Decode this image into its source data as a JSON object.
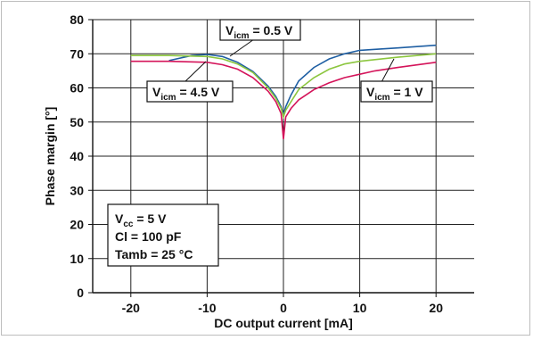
{
  "chart_data": {
    "type": "line",
    "title": "",
    "xlabel": "DC output current [mA]",
    "ylabel": "Phase margin [°]",
    "xlim": [
      -25,
      25
    ],
    "ylim": [
      0,
      80
    ],
    "x_ticks": [
      -20,
      -10,
      0,
      10,
      20
    ],
    "x_tick_labels": [
      "-20",
      "-10",
      "0",
      "10",
      "20"
    ],
    "y_ticks": [
      0,
      10,
      20,
      30,
      40,
      50,
      60,
      70,
      80
    ],
    "y_tick_labels": [
      "0",
      "10",
      "20",
      "30",
      "40",
      "50",
      "60",
      "70",
      "80"
    ],
    "grid": true,
    "series": [
      {
        "name": "Vicm = 0.5 V",
        "color": "#1f5fa3",
        "x": [
          -15,
          -12,
          -10,
          -8,
          -6,
          -4,
          -2,
          -1,
          -0.3,
          0,
          0.3,
          1,
          2,
          4,
          6,
          8,
          10,
          12,
          15,
          20
        ],
        "y": [
          68.0,
          69.5,
          69.8,
          69.2,
          67.5,
          64.8,
          60.5,
          57.5,
          54.5,
          52.0,
          54.5,
          58.0,
          62.0,
          66.0,
          68.5,
          70.0,
          71.0,
          71.3,
          71.7,
          72.5
        ]
      },
      {
        "name": "Vicm = 1 V",
        "color": "#8cc63f",
        "x": [
          -20,
          -15,
          -10,
          -8,
          -6,
          -4,
          -2,
          -1,
          -0.3,
          0,
          0.3,
          1,
          2,
          4,
          6,
          8,
          10,
          12,
          15,
          20
        ],
        "y": [
          69.5,
          69.5,
          69.2,
          68.5,
          67.0,
          64.5,
          60.0,
          57.0,
          54.0,
          51.5,
          53.5,
          56.0,
          59.5,
          63.0,
          65.5,
          67.0,
          67.8,
          68.3,
          69.0,
          70.0
        ]
      },
      {
        "name": "Vicm = 4.5 V",
        "color": "#d4145a",
        "x": [
          -20,
          -15,
          -10,
          -8,
          -6,
          -4,
          -2,
          -1,
          -0.3,
          0,
          0.3,
          1,
          2,
          4,
          6,
          8,
          10,
          12,
          15,
          20
        ],
        "y": [
          67.8,
          67.8,
          67.5,
          66.8,
          65.5,
          63.0,
          59.0,
          56.0,
          52.5,
          45.0,
          51.5,
          54.0,
          56.5,
          59.5,
          61.5,
          63.0,
          64.0,
          65.0,
          66.0,
          67.5
        ]
      }
    ],
    "annotations": [
      {
        "id": "vicm05",
        "main": "V",
        "sub": "icm",
        "rest": " = 0.5 V",
        "series": 0
      },
      {
        "id": "vicm1",
        "main": "V",
        "sub": "icm",
        "rest": " = 1 V",
        "series": 1
      },
      {
        "id": "vicm45",
        "main": "V",
        "sub": "icm",
        "rest": " = 4.5 V",
        "series": 2
      }
    ],
    "conditions": {
      "line1_main": "V",
      "line1_sub": "cc",
      "line1_rest": " = 5 V",
      "line2": "Cl = 100 pF",
      "line3": "Tamb = 25 °C"
    }
  }
}
